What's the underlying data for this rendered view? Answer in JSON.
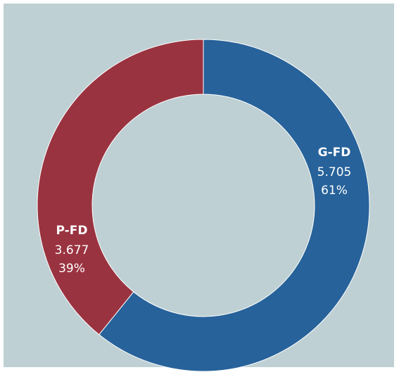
{
  "chart_data": {
    "type": "donut",
    "categories": [
      "G-FD",
      "P-FD"
    ],
    "values": [
      5.705,
      3.677
    ],
    "percent_labels": [
      "61%",
      "39%"
    ],
    "colors": [
      "#27629a",
      "#9a3340"
    ]
  }
}
